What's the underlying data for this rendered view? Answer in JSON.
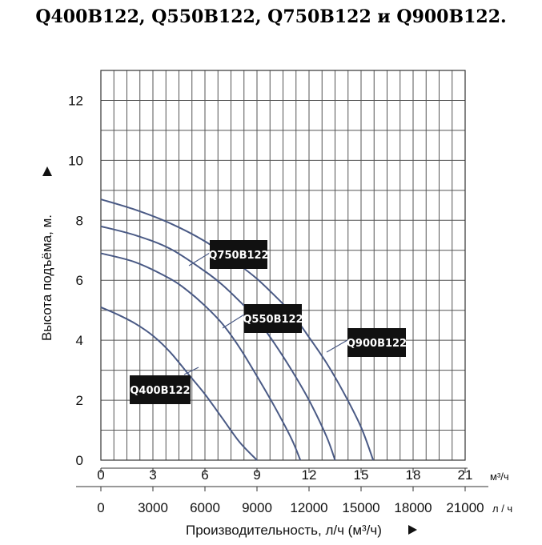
{
  "title": "Q400B122, Q550B122, Q750B122 и Q900B122.",
  "chart_data": {
    "type": "line",
    "title": "Q400B122, Q550B122, Q750B122 и Q900B122.",
    "ylabel": "Высота подъёма, м.",
    "xlabel": "Производительность, л/ч (м³/ч)",
    "x_unit_top": "м³/ч",
    "x_unit_bottom": "л / ч",
    "xlim": [
      0,
      21
    ],
    "ylim": [
      0,
      13
    ],
    "xticks_m3h": [
      "0",
      "3",
      "6",
      "9",
      "12",
      "15",
      "18",
      "21"
    ],
    "xticks_lh": [
      "0",
      "3000",
      "6000",
      "9000",
      "12000",
      "15000",
      "18000",
      "21000"
    ],
    "yticks": [
      "0",
      "2",
      "4",
      "6",
      "8",
      "10",
      "12"
    ],
    "grid": true,
    "series": [
      {
        "name": "Q400B122",
        "color": "#4a5a85",
        "x": [
          0,
          1,
          2,
          3,
          4,
          5,
          6,
          7,
          8,
          9
        ],
        "y": [
          5.1,
          4.85,
          4.55,
          4.15,
          3.6,
          2.9,
          2.2,
          1.4,
          0.6,
          0
        ]
      },
      {
        "name": "Q550B122",
        "color": "#4a5a85",
        "x": [
          0,
          2,
          4,
          5,
          6,
          7,
          8,
          9,
          10,
          11,
          11.5
        ],
        "y": [
          6.9,
          6.6,
          6.05,
          5.65,
          5.15,
          4.55,
          3.75,
          2.8,
          1.8,
          0.7,
          0
        ]
      },
      {
        "name": "Q750B122",
        "color": "#4a5a85",
        "x": [
          0,
          2,
          4,
          6,
          7,
          8,
          9,
          10,
          11,
          12,
          13,
          13.5
        ],
        "y": [
          7.8,
          7.5,
          7.05,
          6.3,
          5.85,
          5.3,
          4.7,
          3.9,
          3.0,
          2.0,
          0.8,
          0
        ]
      },
      {
        "name": "Q900B122",
        "color": "#4a5a85",
        "x": [
          0,
          2,
          4,
          6,
          8,
          9,
          10,
          11,
          12,
          13,
          14,
          15,
          15.7
        ],
        "y": [
          8.7,
          8.35,
          7.9,
          7.3,
          6.5,
          6.05,
          5.5,
          4.9,
          4.1,
          3.25,
          2.25,
          1.1,
          0
        ]
      }
    ],
    "labels": [
      {
        "text": "Q400B122"
      },
      {
        "text": "Q550B122"
      },
      {
        "text": "Q750B122"
      },
      {
        "text": "Q900B122"
      }
    ]
  }
}
